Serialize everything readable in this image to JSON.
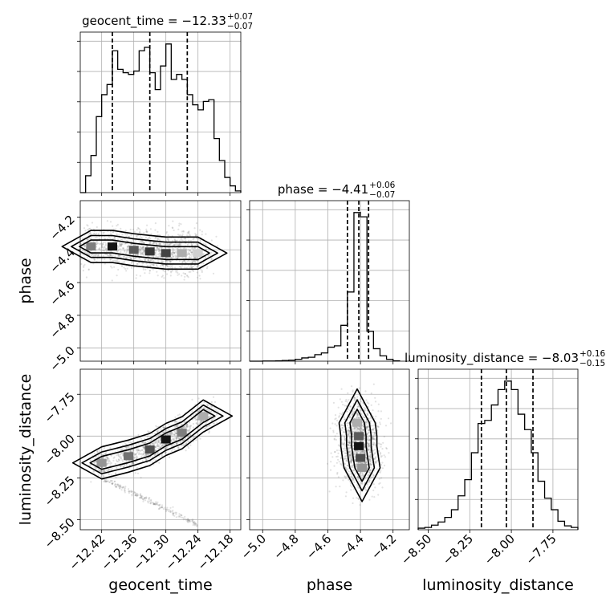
{
  "chart_data": {
    "type": "corner",
    "parameters": [
      {
        "name": "geocent_time",
        "label": "geocent_time",
        "median": "−12.33",
        "plus": "+0.07",
        "minus": "−0.07",
        "title": "geocent_time = −12.33",
        "range": [
          -12.46,
          -12.16
        ],
        "ticks": [
          -12.42,
          -12.36,
          -12.3,
          -12.24,
          -12.18
        ],
        "tick_labels": [
          "−12.42",
          "−12.36",
          "−12.30",
          "−12.24",
          "−12.18"
        ],
        "quantiles": [
          -12.4,
          -12.33,
          -12.26
        ]
      },
      {
        "name": "phase",
        "label": "phase",
        "median": "−4.41",
        "plus": "+0.06",
        "minus": "−0.07",
        "title": "phase = −4.41",
        "range": [
          -5.08,
          -4.1
        ],
        "ticks": [
          -5.0,
          -4.8,
          -4.6,
          -4.4,
          -4.2
        ],
        "tick_labels": [
          "−5.0",
          "−4.8",
          "−4.6",
          "−4.4",
          "−4.2"
        ],
        "quantiles": [
          -4.48,
          -4.41,
          -4.35
        ]
      },
      {
        "name": "luminosity_distance",
        "label": "luminosity_distance",
        "median": "−8.03",
        "plus": "+0.16",
        "minus": "−0.15",
        "title": "luminosity_distance = −8.03",
        "range": [
          -8.56,
          -7.6
        ],
        "ticks": [
          -8.5,
          -8.25,
          -8.0,
          -7.75
        ],
        "tick_labels": [
          "−8.50",
          "−8.25",
          "−8.00",
          "−7.75"
        ],
        "quantiles": [
          -8.18,
          -8.03,
          -7.87
        ]
      }
    ],
    "histograms": [
      {
        "parameter": "geocent_time",
        "edges": [
          -12.46,
          -12.45,
          -12.44,
          -12.43,
          -12.42,
          -12.41,
          -12.4,
          -12.39,
          -12.38,
          -12.37,
          -12.36,
          -12.35,
          -12.34,
          -12.33,
          -12.32,
          -12.31,
          -12.3,
          -12.29,
          -12.28,
          -12.27,
          -12.26,
          -12.25,
          -12.24,
          -12.23,
          -12.22,
          -12.21,
          -12.2,
          -12.19,
          -12.18,
          -12.17,
          -12.16
        ],
        "counts": [
          0,
          10,
          22,
          45,
          58,
          64,
          84,
          73,
          71,
          70,
          72,
          84,
          86,
          71,
          61,
          75,
          88,
          67,
          70,
          67,
          58,
          52,
          49,
          54,
          55,
          32,
          19,
          9,
          4,
          1
        ]
      },
      {
        "parameter": "phase",
        "edges": [
          -5.08,
          -5.04,
          -5.0,
          -4.96,
          -4.92,
          -4.88,
          -4.84,
          -4.8,
          -4.76,
          -4.72,
          -4.68,
          -4.64,
          -4.6,
          -4.56,
          -4.52,
          -4.48,
          -4.44,
          -4.4,
          -4.36,
          -4.32,
          -4.28,
          -4.24,
          -4.2,
          -4.16
        ],
        "counts": [
          0,
          0,
          1,
          1,
          2,
          4,
          6,
          11,
          19,
          23,
          38,
          48,
          82,
          90,
          210,
          405,
          870,
          845,
          175,
          73,
          31,
          11,
          2
        ]
      },
      {
        "parameter": "luminosity_distance",
        "edges": [
          -8.56,
          -8.52,
          -8.48,
          -8.44,
          -8.4,
          -8.36,
          -8.32,
          -8.28,
          -8.24,
          -8.2,
          -8.16,
          -8.12,
          -8.08,
          -8.04,
          -8.0,
          -7.96,
          -7.92,
          -7.88,
          -7.84,
          -7.8,
          -7.76,
          -7.72,
          -7.68,
          -7.64,
          -7.6
        ],
        "counts": [
          2,
          3,
          6,
          10,
          16,
          26,
          44,
          65,
          100,
          138,
          142,
          162,
          182,
          193,
          182,
          150,
          130,
          100,
          63,
          41,
          26,
          11,
          5,
          3
        ]
      }
    ],
    "joint": [
      {
        "x": "geocent_time",
        "y": "phase",
        "density": [
          {
            "x": -12.44,
            "y": -4.38,
            "level": 0.55
          },
          {
            "x": -12.4,
            "y": -4.38,
            "level": 1.0
          },
          {
            "x": -12.36,
            "y": -4.4,
            "level": 0.7
          },
          {
            "x": -12.33,
            "y": -4.41,
            "level": 0.85
          },
          {
            "x": -12.3,
            "y": -4.42,
            "level": 0.8
          },
          {
            "x": -12.27,
            "y": -4.42,
            "level": 0.35
          },
          {
            "x": -12.24,
            "y": -4.42,
            "level": 0.2
          }
        ]
      },
      {
        "x": "geocent_time",
        "y": "luminosity_distance",
        "density": [
          {
            "x": -12.42,
            "y": -8.16,
            "level": 0.45
          },
          {
            "x": -12.37,
            "y": -8.12,
            "level": 0.6
          },
          {
            "x": -12.33,
            "y": -8.08,
            "level": 0.75
          },
          {
            "x": -12.3,
            "y": -8.02,
            "level": 1.0
          },
          {
            "x": -12.27,
            "y": -7.98,
            "level": 0.55
          },
          {
            "x": -12.23,
            "y": -7.88,
            "level": 0.35
          }
        ]
      },
      {
        "x": "phase",
        "y": "luminosity_distance",
        "density": [
          {
            "x": -4.42,
            "y": -7.92,
            "level": 0.35
          },
          {
            "x": -4.41,
            "y": -8.0,
            "level": 0.7
          },
          {
            "x": -4.41,
            "y": -8.06,
            "level": 1.0
          },
          {
            "x": -4.4,
            "y": -8.13,
            "level": 0.75
          },
          {
            "x": -4.39,
            "y": -8.19,
            "level": 0.45
          }
        ]
      }
    ],
    "grid": true
  }
}
